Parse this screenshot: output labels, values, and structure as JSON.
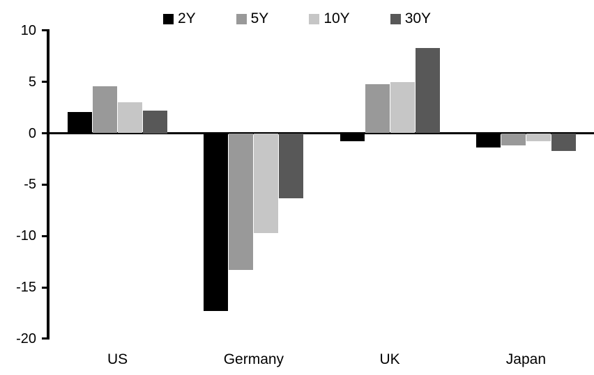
{
  "chart_data": {
    "type": "bar",
    "title": "",
    "categories": [
      "US",
      "Germany",
      "UK",
      "Japan"
    ],
    "series": [
      {
        "name": "2Y",
        "color": "#000000",
        "values": [
          2.1,
          -17.3,
          -0.8,
          -1.4
        ]
      },
      {
        "name": "5Y",
        "color": "#999999",
        "values": [
          4.6,
          -13.3,
          4.8,
          -1.2
        ]
      },
      {
        "name": "10Y",
        "color": "#c6c6c6",
        "values": [
          3.0,
          -9.7,
          5.0,
          -0.8
        ]
      },
      {
        "name": "30Y",
        "color": "#585858",
        "values": [
          2.2,
          -6.3,
          8.3,
          -1.7
        ]
      }
    ],
    "ylim": [
      -20,
      10
    ],
    "yticks": [
      10,
      5,
      0,
      -5,
      -10,
      -15,
      -20
    ],
    "ytick_labels": [
      "10",
      "5",
      "0",
      "-5",
      "-10",
      "-15",
      "-20"
    ],
    "legend_position": "top-center",
    "grid": false,
    "axis_color": "#000000",
    "background_color": "#ffffff",
    "xlabel": "",
    "ylabel": ""
  }
}
